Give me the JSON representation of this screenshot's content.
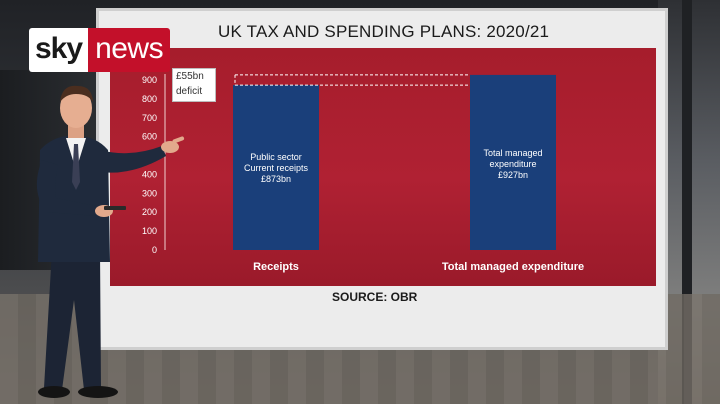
{
  "brand": {
    "sky": "sky",
    "news": "news",
    "red": "#c3102a"
  },
  "screen": {
    "title": "UK TAX AND SPENDING PLANS: 2020/21",
    "source": "SOURCE: OBR",
    "deficit": {
      "line1": "£55bn",
      "line2": "deficit",
      "value": 55
    }
  },
  "colors": {
    "panel": "#a61d2c",
    "bar": "#1a3f7a",
    "dashed": "#ffffff"
  },
  "chart_data": {
    "type": "bar",
    "title": "UK TAX AND SPENDING PLANS: 2020/21",
    "categories": [
      "Receipts",
      "Total managed expenditure"
    ],
    "values": [
      873,
      927
    ],
    "bar_labels": [
      [
        "Public sector",
        "Current receipts",
        "£873bn"
      ],
      [
        "Total managed",
        "expenditure",
        "£927bn"
      ]
    ],
    "ylim": [
      0,
      900
    ],
    "yticks": [
      0,
      100,
      200,
      300,
      400,
      500,
      600,
      700,
      800,
      900
    ],
    "grid": false,
    "source": "SOURCE: OBR"
  }
}
